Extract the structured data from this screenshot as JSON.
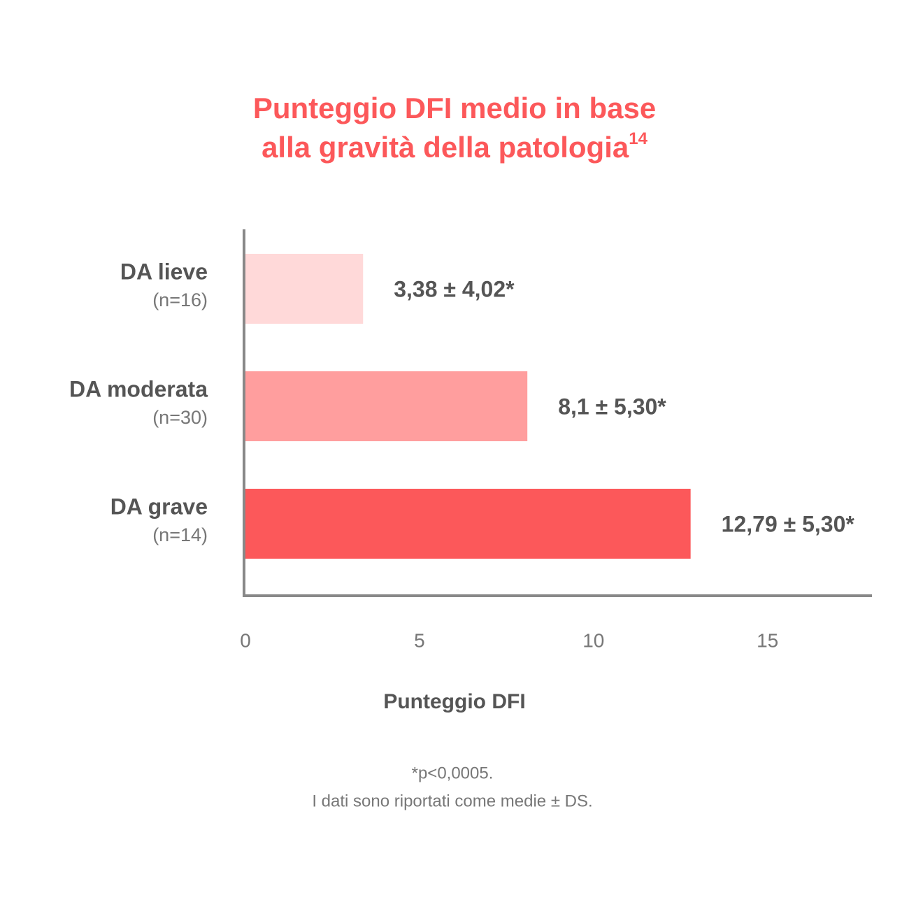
{
  "chart_data": {
    "type": "barh",
    "title": [
      "Punteggio DFI medio in base",
      "alla gravità della patologia"
    ],
    "title_ref": "14",
    "categories": [
      "DA lieve",
      "DA moderata",
      "DA grave"
    ],
    "sample_sizes": [
      "(n=16)",
      "(n=30)",
      "(n=14)"
    ],
    "values": [
      3.38,
      8.1,
      12.79
    ],
    "value_labels": [
      "3,38 ± 4,02*",
      "8,1 ± 5,30*",
      "12,79 ± 5,30*"
    ],
    "colors": [
      "#ffd9d9",
      "#ff9e9e",
      "#fc585a"
    ],
    "xlabel": "Punteggio DFI",
    "xlim": [
      0,
      18
    ],
    "xticks": [
      0,
      5,
      10,
      15
    ],
    "notes": [
      "*p<0,0005.",
      "I dati sono riportati come medie ± DS."
    ]
  }
}
